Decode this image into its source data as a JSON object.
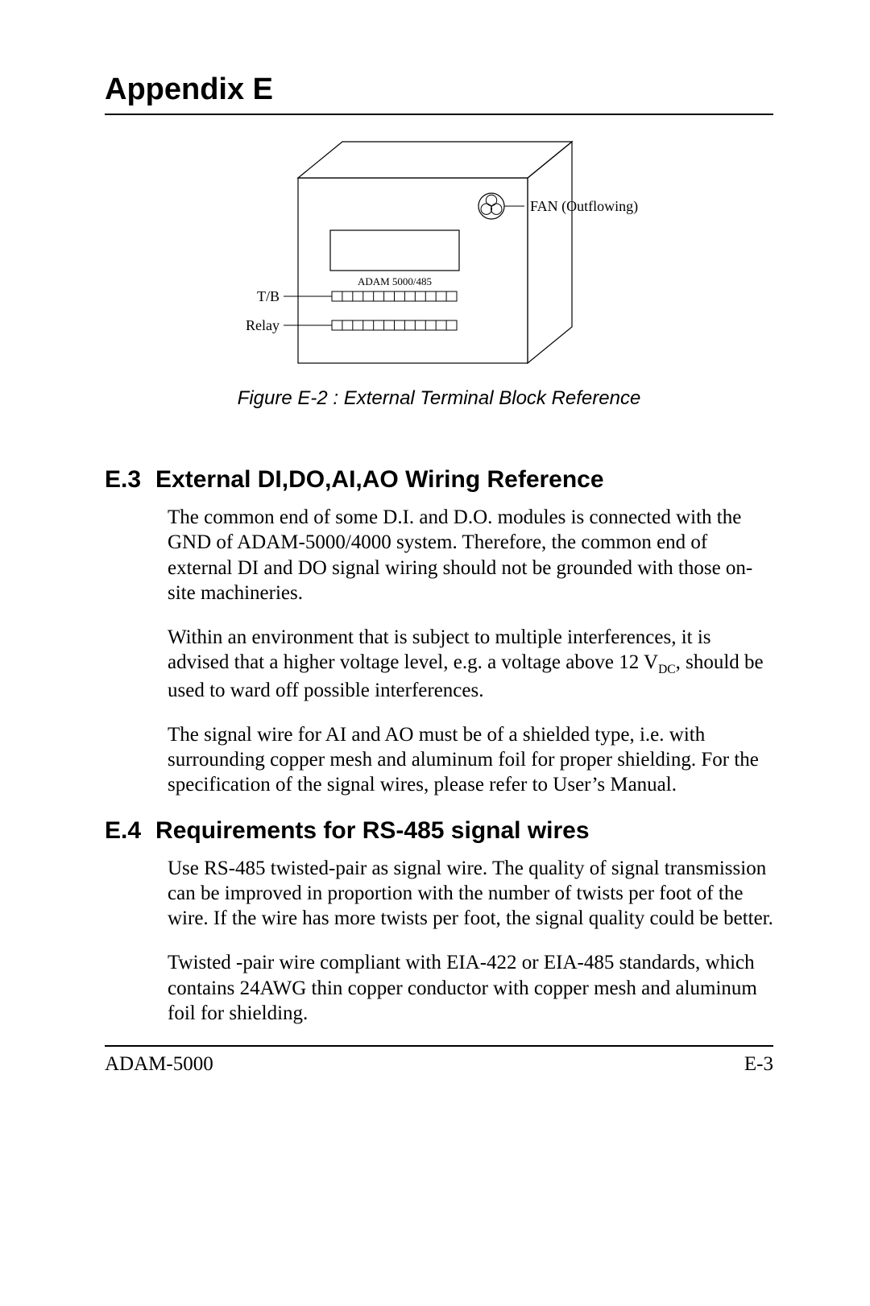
{
  "page": {
    "title": "Appendix E",
    "footer_left": "ADAM-5000",
    "footer_right": "E-3"
  },
  "figure": {
    "caption": "Figure E-2 : External Terminal Block Reference",
    "box_label": "ADAM 5000/485",
    "tb_label": "T/B",
    "relay_label": "Relay",
    "fan_label": "FAN (Outflowing)",
    "stroke_color": "#000000",
    "stroke_width": 1.2,
    "terminal_slots": 12
  },
  "sections": {
    "e3": {
      "num": "E.3",
      "title": "External DI,DO,AI,AO Wiring Reference",
      "p1": "The common end of some D.I. and D.O. modules is connected with the GND of ADAM-5000/4000 system. Therefore, the common end of external DI and DO signal wiring should not be grounded with those on-site machineries.",
      "p2a": "Within an environment that is subject to multiple interferences, it is advised that a higher voltage level, e.g. a voltage above 12 V",
      "p2_sub": "DC",
      "p2b": ", should be used to ward off possible interferences.",
      "p3": "The signal wire for AI and AO must be of a shielded type, i.e. with surrounding copper mesh and aluminum foil for proper shielding. For the specification of the signal wires, please refer to User’s Manual."
    },
    "e4": {
      "num": "E.4",
      "title": "Requirements for RS-485 signal wires",
      "p1": "Use RS-485 twisted-pair as signal wire. The quality of signal transmission can be improved in proportion with the number of twists per foot of the wire. If the wire has more twists per foot, the signal quality could be better.",
      "p2": "Twisted -pair wire compliant with EIA-422 or EIA-485 standards, which contains 24AWG thin copper conductor with copper mesh and aluminum foil for shielding."
    }
  }
}
